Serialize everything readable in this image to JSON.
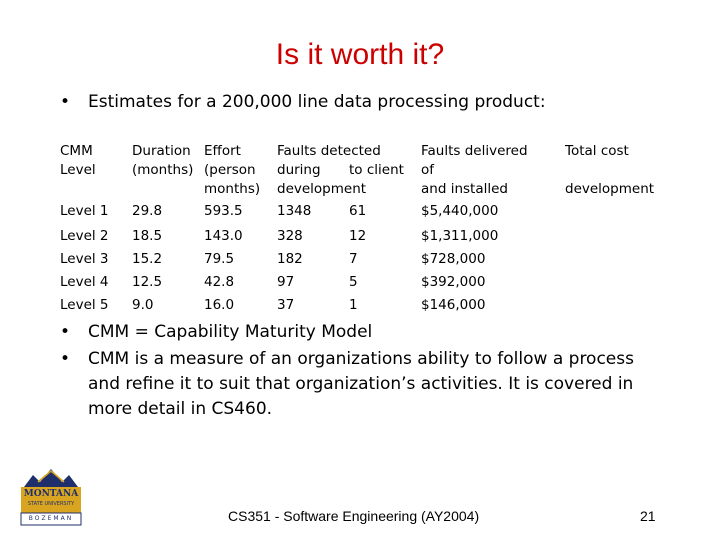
{
  "slide": {
    "title": "Is it worth it?",
    "bullets": [
      {
        "marker": "•",
        "text": "Estimates for a 200,000 line data processing product:"
      },
      {
        "marker": "•",
        "text": "CMM = Capability Maturity Model"
      },
      {
        "marker": "•",
        "text": "CMM is a measure of an organizations ability to follow a process and refine it to suit that organization’s activities. It is covered in more detail in CS460."
      }
    ],
    "table": {
      "headers": {
        "level": [
          "CMM",
          "Level"
        ],
        "duration": [
          "Duration",
          "(months)"
        ],
        "effort": [
          "Effort",
          "(person",
          "months)"
        ],
        "faults_detected": [
          "Faults detected",
          "during",
          "to client",
          "development"
        ],
        "faults_delivered": [
          "Faults delivered",
          "of",
          "and installed"
        ],
        "total_cost": [
          "Total cost",
          "development"
        ]
      },
      "rows": [
        {
          "level": "Level 1",
          "duration": "29.8",
          "effort": "593.5",
          "detected": "1348",
          "to_client": "61",
          "cost": "$5,440,000"
        },
        {
          "level": "Level 2",
          "duration": "18.5",
          "effort": "143.0",
          "detected": "328",
          "to_client": "12",
          "cost": "$1,311,000"
        },
        {
          "level": "Level 3",
          "duration": "15.2",
          "effort": "79.5",
          "detected": "182",
          "to_client": "7",
          "cost": "$728,000"
        },
        {
          "level": "Level 4",
          "duration": "12.5",
          "effort": "42.8",
          "detected": "97",
          "to_client": "5",
          "cost": "$392,000"
        },
        {
          "level": "Level 5",
          "duration": "9.0",
          "effort": "16.0",
          "detected": "37",
          "to_client": "1",
          "cost": "$146,000"
        }
      ]
    },
    "footer": "CS351 - Software Engineering (AY2004)",
    "page_number": "21",
    "logo": {
      "line1": "MONTANA",
      "line2": "STATE UNIVERSITY",
      "line3": "BOZEMAN",
      "colors": {
        "gold": "#d9a520",
        "navy": "#1f2f6b"
      }
    }
  }
}
